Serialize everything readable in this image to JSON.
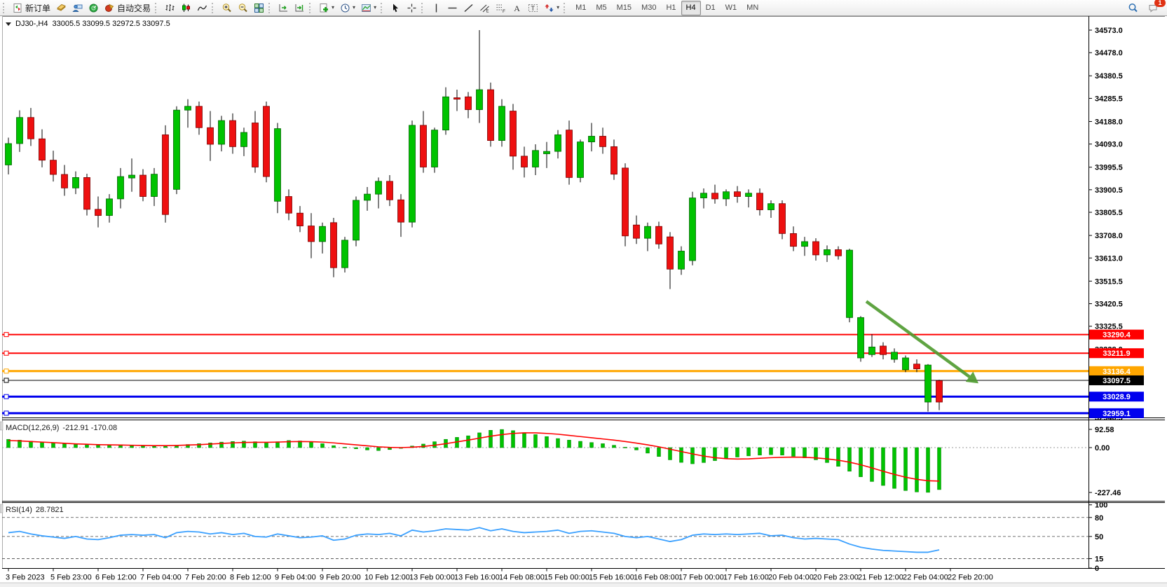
{
  "toolbar": {
    "groups": [
      {
        "name": "trade",
        "items": [
          {
            "name": "new-order-button",
            "icon": "new-order-icon",
            "label": "新订单"
          },
          {
            "name": "market-watch-button",
            "icon": "book-icon"
          },
          {
            "name": "data-window-button",
            "icon": "person-icon"
          },
          {
            "name": "signals-button",
            "icon": "radar-icon"
          },
          {
            "name": "autotrading-button",
            "icon": "autotrading-icon",
            "label": "自动交易"
          }
        ]
      },
      {
        "name": "chart-type",
        "items": [
          {
            "name": "bar-chart-button",
            "icon": "bar-chart-icon"
          },
          {
            "name": "candlestick-button",
            "icon": "candlestick-icon"
          },
          {
            "name": "line-chart-button",
            "icon": "line-chart-icon"
          }
        ]
      },
      {
        "name": "zoom",
        "items": [
          {
            "name": "zoom-in-button",
            "icon": "zoom-in-icon"
          },
          {
            "name": "zoom-out-button",
            "icon": "zoom-out-icon"
          },
          {
            "name": "tile-windows-button",
            "icon": "tile-windows-icon"
          }
        ]
      },
      {
        "name": "scroll",
        "items": [
          {
            "name": "auto-scroll-button",
            "icon": "auto-scroll-icon"
          },
          {
            "name": "chart-shift-button",
            "icon": "chart-shift-icon"
          }
        ]
      },
      {
        "name": "objects",
        "items": [
          {
            "name": "indicators-button",
            "icon": "indicators-icon",
            "dropdown": true
          },
          {
            "name": "periods-button",
            "icon": "clock-icon",
            "dropdown": true
          },
          {
            "name": "templates-button",
            "icon": "template-icon",
            "dropdown": true
          }
        ]
      },
      {
        "name": "pointer",
        "items": [
          {
            "name": "cursor-button",
            "icon": "cursor-icon"
          },
          {
            "name": "crosshair-button",
            "icon": "crosshair-icon"
          }
        ]
      },
      {
        "name": "draw",
        "items": [
          {
            "name": "vertical-line-button",
            "icon": "vline-icon"
          },
          {
            "name": "horizontal-line-button",
            "icon": "hline-icon"
          },
          {
            "name": "trendline-button",
            "icon": "trendline-icon"
          },
          {
            "name": "channel-button",
            "icon": "channel-icon"
          },
          {
            "name": "fibonacci-button",
            "icon": "fibo-icon"
          },
          {
            "name": "text-button",
            "icon": "text-icon"
          },
          {
            "name": "text-label-button",
            "icon": "label-icon"
          },
          {
            "name": "arrows-button",
            "icon": "arrows-icon",
            "dropdown": true
          }
        ]
      }
    ],
    "timeframes": {
      "items": [
        "M1",
        "M5",
        "M15",
        "M30",
        "H1",
        "H4",
        "D1",
        "W1",
        "MN"
      ],
      "active": "H4"
    },
    "right": [
      {
        "name": "search-button",
        "icon": "search-icon"
      },
      {
        "name": "notifications-button",
        "icon": "chat-icon",
        "badge": "1"
      }
    ]
  },
  "chart": {
    "symbol_period": "DJ30-,H4",
    "ohlc": "33005.5 33099.5 32972.5 33097.5",
    "macd_label": "MACD(12,26,9)",
    "macd_values": "-212.91 -170.08",
    "rsi_label": "RSI(14)",
    "rsi_value": "28.7821"
  },
  "chart_data": [
    {
      "type": "candlestick",
      "title": "DJ30-,H4",
      "ylim": [
        32941,
        34632
      ],
      "y_ticks": [
        "34573.0",
        "34478.0",
        "34380.5",
        "34285.5",
        "34188.0",
        "34093.0",
        "33995.5",
        "33900.5",
        "33805.5",
        "33708.0",
        "33613.0",
        "33515.5",
        "33420.5",
        "33325.5",
        "33228.0",
        "33130.5",
        "33033.0",
        "32940.5"
      ],
      "x_labels": [
        "3 Feb 2023",
        "5 Feb 23:00",
        "6 Feb 12:00",
        "7 Feb 04:00",
        "7 Feb 20:00",
        "8 Feb 12:00",
        "9 Feb 04:00",
        "9 Feb 20:00",
        "10 Feb 12:00",
        "13 Feb 00:00",
        "13 Feb 16:00",
        "14 Feb 08:00",
        "15 Feb 00:00",
        "15 Feb 16:00",
        "16 Feb 08:00",
        "17 Feb 00:00",
        "17 Feb 16:00",
        "20 Feb 04:00",
        "20 Feb 23:00",
        "21 Feb 12:00",
        "22 Feb 04:00",
        "22 Feb 20:00"
      ],
      "bars_per_label": 4,
      "colors": {
        "up": "#00c300",
        "down": "#ee1010",
        "wick": "#000000"
      },
      "ohlc": [
        [
          34005,
          34120,
          33965,
          34095
        ],
        [
          34095,
          34235,
          34060,
          34205
        ],
        [
          34205,
          34245,
          34085,
          34115
        ],
        [
          34115,
          34155,
          33995,
          34025
        ],
        [
          34025,
          34065,
          33935,
          33965
        ],
        [
          33965,
          34005,
          33875,
          33908
        ],
        [
          33908,
          33978,
          33882,
          33952
        ],
        [
          33952,
          33968,
          33792,
          33818
        ],
        [
          33818,
          33872,
          33742,
          33792
        ],
        [
          33792,
          33882,
          33762,
          33862
        ],
        [
          33862,
          33992,
          33822,
          33956
        ],
        [
          33950,
          34032,
          33892,
          33962
        ],
        [
          33962,
          33987,
          33852,
          33872
        ],
        [
          33872,
          33992,
          33832,
          33966
        ],
        [
          34132,
          34172,
          33762,
          33796
        ],
        [
          33902,
          34252,
          33882,
          34236
        ],
        [
          34236,
          34282,
          34162,
          34252
        ],
        [
          34252,
          34272,
          34132,
          34162
        ],
        [
          34162,
          34232,
          34022,
          34092
        ],
        [
          34092,
          34212,
          34062,
          34192
        ],
        [
          34192,
          34222,
          34052,
          34082
        ],
        [
          34082,
          34162,
          34042,
          34142
        ],
        [
          34182,
          34232,
          33972,
          33996
        ],
        [
          34252,
          34272,
          33932,
          33956
        ],
        [
          33852,
          34182,
          33802,
          34158
        ],
        [
          33872,
          33902,
          33772,
          33802
        ],
        [
          33802,
          33832,
          33722,
          33748
        ],
        [
          33748,
          33802,
          33612,
          33682
        ],
        [
          33682,
          33762,
          33632,
          33746
        ],
        [
          33762,
          33782,
          33532,
          33572
        ],
        [
          33572,
          33702,
          33552,
          33688
        ],
        [
          33688,
          33872,
          33662,
          33856
        ],
        [
          33856,
          33912,
          33812,
          33882
        ],
        [
          33882,
          33952,
          33822,
          33936
        ],
        [
          33936,
          33962,
          33832,
          33858
        ],
        [
          33858,
          33882,
          33702,
          33764
        ],
        [
          33764,
          34192,
          33742,
          34172
        ],
        [
          34172,
          34232,
          33972,
          33996
        ],
        [
          33996,
          34162,
          33972,
          34152
        ],
        [
          34152,
          34332,
          34132,
          34292
        ],
        [
          34288,
          34322,
          34232,
          34282
        ],
        [
          34292,
          34312,
          34202,
          34238
        ],
        [
          34238,
          34573,
          34182,
          34322
        ],
        [
          34322,
          34352,
          34082,
          34108
        ],
        [
          34108,
          34282,
          34082,
          34252
        ],
        [
          34232,
          34262,
          33985,
          34042
        ],
        [
          34042,
          34082,
          33952,
          33996
        ],
        [
          33996,
          34092,
          33962,
          34066
        ],
        [
          34052,
          34102,
          33992,
          34062
        ],
        [
          34062,
          34152,
          34032,
          34132
        ],
        [
          34152,
          34192,
          33922,
          33952
        ],
        [
          33952,
          34112,
          33932,
          34102
        ],
        [
          34102,
          34182,
          34062,
          34126
        ],
        [
          34126,
          34162,
          34052,
          34082
        ],
        [
          34082,
          34112,
          33942,
          33966
        ],
        [
          33992,
          34012,
          33662,
          33706
        ],
        [
          33752,
          33792,
          33672,
          33696
        ],
        [
          33696,
          33762,
          33642,
          33746
        ],
        [
          33746,
          33766,
          33652,
          33672
        ],
        [
          33702,
          33722,
          33482,
          33566
        ],
        [
          33566,
          33662,
          33542,
          33642
        ],
        [
          33602,
          33892,
          33582,
          33866
        ],
        [
          33866,
          33906,
          33822,
          33886
        ],
        [
          33886,
          33922,
          33842,
          33862
        ],
        [
          33862,
          33902,
          33832,
          33892
        ],
        [
          33892,
          33916,
          33846,
          33872
        ],
        [
          33872,
          33902,
          33826,
          33886
        ],
        [
          33886,
          33906,
          33792,
          33816
        ],
        [
          33816,
          33856,
          33782,
          33842
        ],
        [
          33842,
          33856,
          33692,
          33716
        ],
        [
          33716,
          33746,
          33642,
          33662
        ],
        [
          33662,
          33702,
          33622,
          33682
        ],
        [
          33682,
          33696,
          33602,
          33626
        ],
        [
          33626,
          33666,
          33596,
          33648
        ],
        [
          33648,
          33662,
          33606,
          33622
        ],
        [
          33362,
          33652,
          33342,
          33646
        ],
        [
          33192,
          33368,
          33176,
          33362
        ],
        [
          33206,
          33292,
          33196,
          33238
        ],
        [
          33242,
          33258,
          33186,
          33206
        ],
        [
          33186,
          33232,
          33172,
          33216
        ],
        [
          33142,
          33202,
          33132,
          33192
        ],
        [
          33166,
          33186,
          33132,
          33146
        ],
        [
          33006,
          33166,
          32966,
          33162
        ],
        [
          33096,
          33100,
          32972,
          33006
        ]
      ],
      "hlines": [
        {
          "price": 33290.4,
          "label": "33290.4",
          "color": "#ff0000",
          "width": 2
        },
        {
          "price": 33211.9,
          "label": "33211.9",
          "color": "#ff0000",
          "width": 2
        },
        {
          "price": 33136.4,
          "label": "33136.4",
          "color": "#ffa600",
          "width": 3
        },
        {
          "price": 33097.5,
          "label": "33097.5",
          "color": "#000000",
          "width": 1
        },
        {
          "price": 33028.9,
          "label": "33028.9",
          "color": "#0000ee",
          "width": 3
        },
        {
          "price": 32959.1,
          "label": "32959.1",
          "color": "#0000ee",
          "width": 3
        }
      ],
      "arrow": {
        "from_bar": 76.5,
        "from_price": 33430,
        "to_bar": 86.5,
        "to_price": 33085,
        "color": "#4e9b2e"
      }
    },
    {
      "type": "bar",
      "name": "MACD",
      "params": "12,26,9",
      "ylim": [
        -270,
        138.6
      ],
      "y_ticks": [
        "92.58",
        "0.00",
        "-227.46"
      ],
      "colors": {
        "bar": "#00c300",
        "signal": "#ff0000"
      },
      "values": [
        42,
        38,
        33,
        28,
        24,
        20,
        17,
        14,
        12,
        13,
        15,
        12,
        9,
        7,
        8,
        12,
        16,
        20,
        24,
        28,
        31,
        33,
        30,
        26,
        30,
        36,
        34,
        28,
        20,
        10,
        2,
        -6,
        -12,
        -15,
        -10,
        -4,
        8,
        18,
        30,
        42,
        52,
        60,
        75,
        88,
        92,
        86,
        76,
        66,
        56,
        46,
        38,
        32,
        26,
        20,
        12,
        2,
        -12,
        -28,
        -45,
        -62,
        -75,
        -82,
        -76,
        -66,
        -56,
        -48,
        -42,
        -38,
        -36,
        -38,
        -44,
        -52,
        -62,
        -76,
        -95,
        -120,
        -148,
        -172,
        -192,
        -207,
        -218,
        -225,
        -227,
        -213
      ],
      "signal": [
        36,
        34,
        31,
        28,
        25,
        22,
        19,
        17,
        15,
        14,
        13,
        12,
        11,
        10,
        10,
        11,
        13,
        15,
        18,
        21,
        24,
        26,
        27,
        27,
        28,
        30,
        31,
        30,
        28,
        24,
        19,
        14,
        9,
        4,
        1,
        0,
        2,
        6,
        12,
        20,
        29,
        38,
        48,
        58,
        66,
        72,
        75,
        75,
        72,
        68,
        62,
        56,
        50,
        44,
        38,
        31,
        23,
        14,
        4,
        -8,
        -20,
        -32,
        -43,
        -51,
        -56,
        -58,
        -57,
        -54,
        -51,
        -49,
        -48,
        -49,
        -52,
        -57,
        -64,
        -74,
        -87,
        -103,
        -120,
        -136,
        -150,
        -161,
        -168,
        -170
      ]
    },
    {
      "type": "line",
      "name": "RSI",
      "params": "14",
      "ylim": [
        0,
        103
      ],
      "y_ticks": [
        "100",
        "80",
        "50",
        "15",
        "0"
      ],
      "levels": [
        80,
        50,
        15
      ],
      "color": "#3aa0ff",
      "values": [
        56,
        58,
        54,
        51,
        49,
        47,
        50,
        46,
        45,
        48,
        52,
        53,
        52,
        53,
        48,
        56,
        58,
        57,
        54,
        56,
        53,
        55,
        50,
        49,
        54,
        51,
        48,
        49,
        51,
        44,
        46,
        52,
        54,
        53,
        55,
        51,
        60,
        57,
        59,
        62,
        61,
        60,
        64,
        59,
        62,
        58,
        56,
        57,
        58,
        60,
        55,
        58,
        59,
        57,
        55,
        50,
        48,
        50,
        46,
        42,
        45,
        52,
        54,
        53,
        54,
        53,
        54,
        55,
        51,
        52,
        48,
        46,
        47,
        46,
        45,
        38,
        33,
        30,
        28,
        27,
        26,
        25,
        25,
        28.78
      ]
    }
  ]
}
